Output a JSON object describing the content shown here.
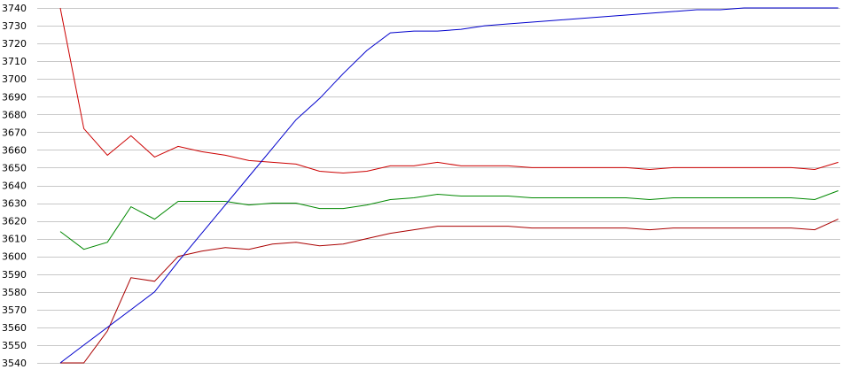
{
  "chart_data": {
    "type": "line",
    "title": "",
    "xlabel": "",
    "ylabel": "",
    "ylim": [
      3540,
      3740
    ],
    "yticks": [
      3540,
      3550,
      3560,
      3570,
      3580,
      3590,
      3600,
      3610,
      3620,
      3630,
      3640,
      3650,
      3660,
      3670,
      3680,
      3690,
      3700,
      3710,
      3720,
      3730,
      3740
    ],
    "grid": true,
    "legend": "none",
    "x": [
      1,
      2,
      3,
      4,
      5,
      6,
      7,
      8,
      9,
      10,
      11,
      12,
      13,
      14,
      15,
      16,
      17,
      18,
      19,
      20,
      21,
      22,
      23,
      24,
      25,
      26,
      27,
      28,
      29,
      30,
      31,
      32,
      33,
      34
    ],
    "series": [
      {
        "color": "#cc0000",
        "values": [
          3740,
          3672,
          3657,
          3668,
          3656,
          3662,
          3659,
          3657,
          3654,
          3653,
          3652,
          3648,
          3647,
          3648,
          3651,
          3651,
          3653,
          3651,
          3651,
          3651,
          3650,
          3650,
          3650,
          3650,
          3650,
          3649,
          3650,
          3650,
          3650,
          3650,
          3650,
          3650,
          3649,
          3653
        ]
      },
      {
        "color": "#008800",
        "values": [
          3614,
          3604,
          3608,
          3628,
          3621,
          3631,
          3631,
          3631,
          3629,
          3630,
          3630,
          3627,
          3627,
          3629,
          3632,
          3633,
          3635,
          3634,
          3634,
          3634,
          3633,
          3633,
          3633,
          3633,
          3633,
          3632,
          3633,
          3633,
          3633,
          3633,
          3633,
          3633,
          3632,
          3637
        ]
      },
      {
        "color": "#aa0000",
        "values": [
          3540,
          3540,
          3558,
          3588,
          3586,
          3600,
          3603,
          3605,
          3604,
          3607,
          3608,
          3606,
          3607,
          3610,
          3613,
          3615,
          3617,
          3617,
          3617,
          3617,
          3616,
          3616,
          3616,
          3616,
          3616,
          3615,
          3616,
          3616,
          3616,
          3616,
          3616,
          3616,
          3615,
          3621
        ]
      },
      {
        "color": "#0000cc",
        "values": [
          3540,
          3550,
          3560,
          3570,
          3580,
          3597,
          3613,
          3629,
          3645,
          3661,
          3677,
          3689,
          3703,
          3716,
          3726,
          3727,
          3727,
          3728,
          3730,
          3731,
          3732,
          3733,
          3734,
          3735,
          3736,
          3737,
          3738,
          3739,
          3739,
          3740,
          3740,
          3740,
          3740,
          3740
        ]
      }
    ]
  }
}
